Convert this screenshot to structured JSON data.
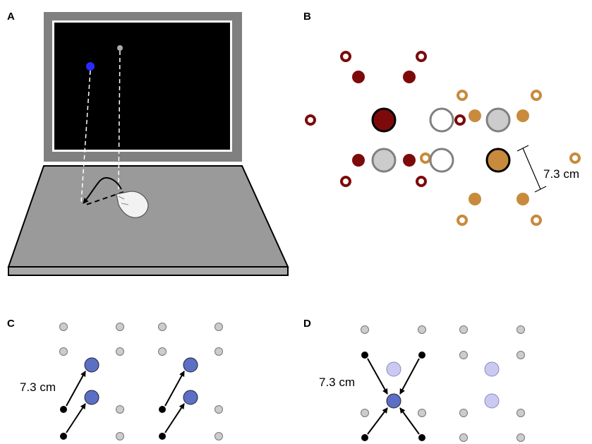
{
  "panels": [
    {
      "label": "A"
    },
    {
      "label": "B",
      "scale_label": "7.3 cm"
    },
    {
      "label": "C",
      "scale_label": "7.3 cm"
    },
    {
      "label": "D",
      "scale_label": "7.3 cm"
    }
  ]
}
